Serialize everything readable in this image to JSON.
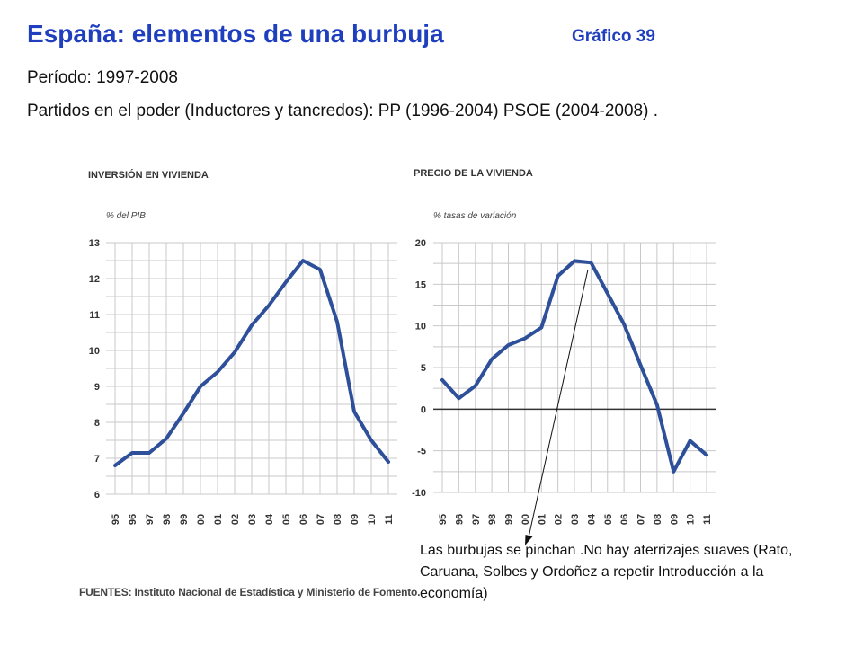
{
  "header": {
    "title": "España: elementos de una burbuja",
    "badge": "Gráfico 39",
    "period": "Período: 1997-2008",
    "parties": "Partidos en el poder (Inductores y tancredos): PP (1996-2004) PSOE (2004-2008) ."
  },
  "sources": "FUENTES: Instituto Nacional de Estadística y Ministerio de Fomento.",
  "annotation": "Las burbujas se pinchan .No hay aterrizajes suaves (Rato, Caruana, Solbes y Ordoñez a repetir Introducción a la economía)",
  "colors": {
    "title": "#1f3fbf",
    "series": "#2e4f99",
    "grid": "#c8c8c8"
  },
  "chart_data": [
    {
      "type": "line",
      "title": "INVERSIÓN EN VIVIENDA",
      "ylabel": "% del PIB",
      "categories": [
        "95",
        "96",
        "97",
        "98",
        "99",
        "00",
        "01",
        "02",
        "03",
        "04",
        "05",
        "06",
        "07",
        "08",
        "09",
        "10",
        "11"
      ],
      "x_ticks": [
        "95",
        "96",
        "97",
        "98",
        "99",
        "00",
        "01",
        "02",
        "03",
        "04",
        "05",
        "06",
        "07",
        "08",
        "09",
        "10",
        "11"
      ],
      "y_ticks": [
        "13",
        "12",
        "11",
        "10",
        "9",
        "8",
        "7",
        "6"
      ],
      "ylim": [
        6,
        13
      ],
      "grid": true,
      "series": [
        {
          "values": [
            6.8,
            7.15,
            7.15,
            7.55,
            8.25,
            9.0,
            9.4,
            9.95,
            10.7,
            11.25,
            11.9,
            12.5,
            12.25,
            10.8,
            8.3,
            7.5,
            6.9
          ]
        }
      ]
    },
    {
      "type": "line",
      "title": "PRECIO DE LA VIVIENDA",
      "ylabel": "% tasas de variación",
      "categories": [
        "95",
        "96",
        "97",
        "98",
        "99",
        "00",
        "01",
        "02",
        "03",
        "04",
        "05",
        "06",
        "07",
        "08",
        "09",
        "10",
        "11"
      ],
      "x_ticks": [
        "95",
        "96",
        "97",
        "98",
        "99",
        "00",
        "01",
        "02",
        "03",
        "04",
        "05",
        "06",
        "07",
        "08",
        "09",
        "10",
        "11"
      ],
      "y_ticks": [
        "20",
        "15",
        "10",
        "5",
        "0",
        "-5",
        "-10"
      ],
      "ylim": [
        -10,
        20
      ],
      "grid": true,
      "series": [
        {
          "values": [
            3.5,
            1.3,
            2.8,
            6.0,
            7.7,
            8.5,
            9.8,
            16.0,
            17.8,
            17.6,
            13.9,
            10.2,
            5.3,
            0.5,
            -7.5,
            -3.8,
            -5.5
          ]
        }
      ]
    }
  ]
}
